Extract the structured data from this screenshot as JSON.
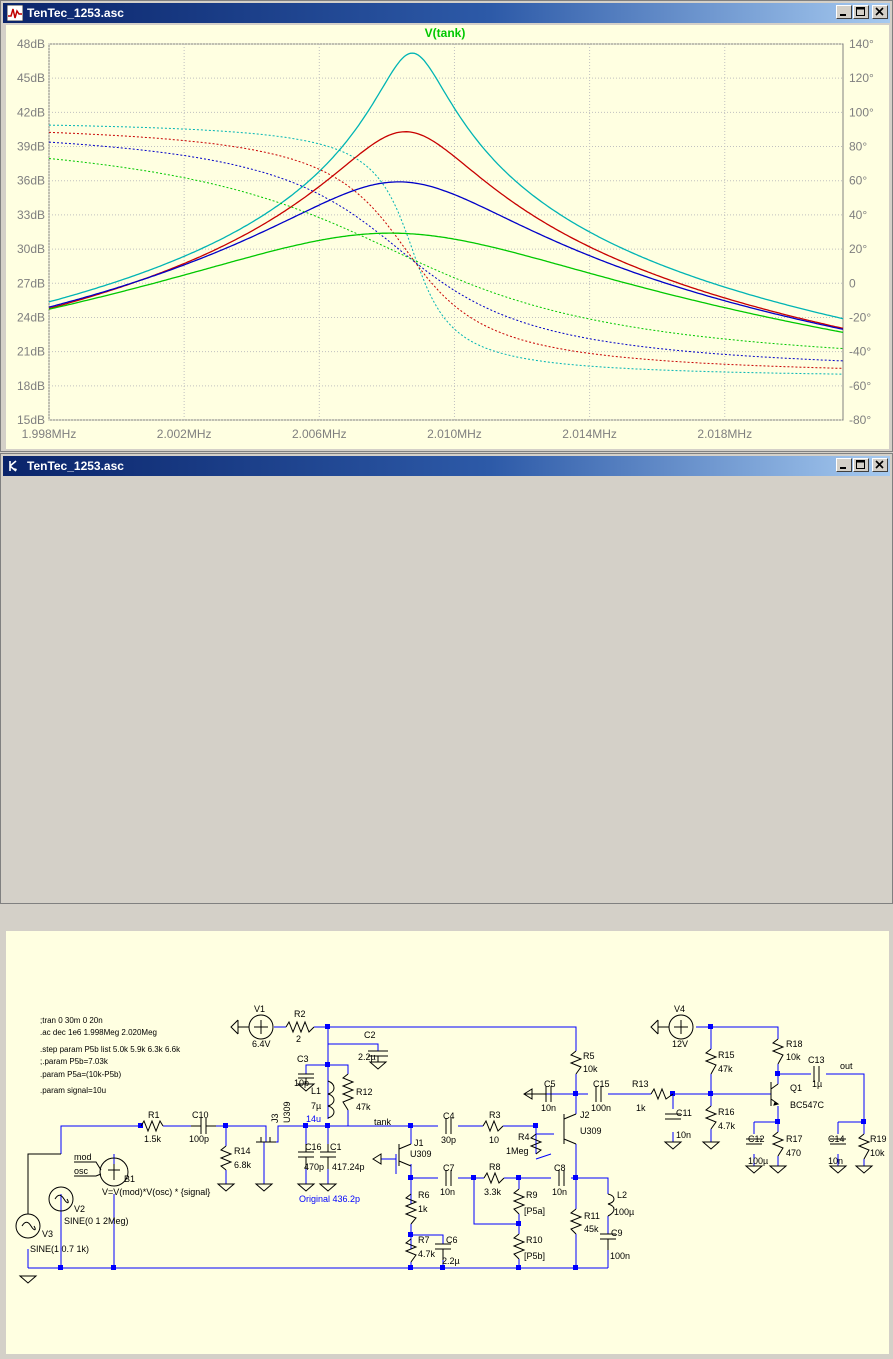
{
  "windows": {
    "plot": {
      "title": "TenTec_1253.asc"
    },
    "schematic": {
      "title": "TenTec_1253.asc"
    }
  },
  "colors": {
    "title_bar": "#0a246a",
    "plot_bg": "#ffffe1",
    "grid": "#c0c0c0",
    "axis_text": "#7f7f7f",
    "wire": "#0000ff",
    "trace_label": "#00c800"
  },
  "chart_data": {
    "type": "line",
    "title": "V(tank)",
    "x_ticks": [
      "1.998MHz",
      "2.002MHz",
      "2.006MHz",
      "2.010MHz",
      "2.014MHz",
      "2.018MHz"
    ],
    "y_left_ticks": [
      "48dB",
      "45dB",
      "42dB",
      "39dB",
      "36dB",
      "33dB",
      "30dB",
      "27dB",
      "24dB",
      "21dB",
      "18dB",
      "15dB"
    ],
    "y_right_ticks": [
      "140°",
      "120°",
      "100°",
      "80°",
      "60°",
      "40°",
      "20°",
      "0",
      "-20°",
      "-40°",
      "-60°",
      "-80°"
    ],
    "xlim_mhz": [
      1.998,
      2.0215
    ],
    "ylim_db": [
      15,
      48
    ],
    "ylim_deg": [
      -80,
      140
    ],
    "grid": true,
    "series": [
      {
        "color": "#00b4b4",
        "f0_mhz": 2.00875,
        "peak_db": 47.2,
        "q": 1150,
        "magnitude": "solid",
        "phase": "dotted"
      },
      {
        "color": "#c80000",
        "f0_mhz": 2.00855,
        "peak_db": 40.3,
        "q": 560,
        "magnitude": "solid",
        "phase": "dotted"
      },
      {
        "color": "#0000c8",
        "f0_mhz": 2.00835,
        "peak_db": 35.9,
        "q": 330,
        "magnitude": "solid",
        "phase": "dotted"
      },
      {
        "color": "#00c800",
        "f0_mhz": 2.0081,
        "peak_db": 31.4,
        "q": 190,
        "magnitude": "solid",
        "phase": "dotted"
      }
    ]
  },
  "schematic": {
    "directives": [
      ";tran 0 30m 0 20n",
      ".ac dec 1e6 1.998Meg 2.020Meg",
      ".step param P5b list 5.0k 5.9k 6.3k 6.6k",
      ";.param P5b=7.03k",
      ".param P5a=(10k-P5b)",
      ".param signal=10u"
    ],
    "labels": {
      "V1": "V1",
      "V1v": "6.4V",
      "R2": "R2",
      "R2v": "2",
      "C2": "C2",
      "C2v": "2.2µ",
      "C3": "C3",
      "C3v": "10p",
      "L1": "L1",
      "L1v": "7µ",
      "L1b": "14u",
      "R12": "R12",
      "R12v": "47k",
      "J3": "J3",
      "J3v": "U309",
      "R1": "R1",
      "R1v": "1.5k",
      "C10": "C10",
      "C10v": "100p",
      "R14": "R14",
      "R14v": "6.8k",
      "tank": "tank",
      "C16": "C16",
      "C16v": "470p",
      "C1": "C1",
      "C1v": "417.24p",
      "orig": "Original 436.2p",
      "C4": "C4",
      "C4v": "30p",
      "R3": "R3",
      "R3v": "10",
      "R4": "R4",
      "R4v": "1Meg",
      "J1": "J1",
      "J1v": "U309",
      "R6": "R6",
      "R6v": "1k",
      "R7": "R7",
      "R7v": "4.7k",
      "C6": "C6",
      "C6v": "2.2µ",
      "C7": "C7",
      "C7v": "10n",
      "R8": "R8",
      "R8v": "3.3k",
      "R9": "R9",
      "R9v": "[P5a]",
      "R10": "R10",
      "R10v": "[P5b]",
      "C8": "C8",
      "C8v": "10n",
      "L2": "L2",
      "L2v": "100µ",
      "R11": "R11",
      "R11v": "45k",
      "C9": "C9",
      "C9v": "100n",
      "R5": "R5",
      "R5v": "10k",
      "C5": "C5",
      "C5v": "10n",
      "J2": "J2",
      "J2v": "U309",
      "C15": "C15",
      "C15v": "100n",
      "R13": "R13",
      "R13v": "1k",
      "C11": "C11",
      "C11v": "10n",
      "V4": "V4",
      "V4v": "12V",
      "R15": "R15",
      "R15v": "47k",
      "R16": "R16",
      "R16v": "4.7k",
      "R18": "R18",
      "R18v": "10k",
      "C13": "C13",
      "C13v": "1µ",
      "out": "out",
      "Q1": "Q1",
      "Q1v": "BC547C",
      "C12": "C12",
      "C12v": "100µ",
      "R17": "R17",
      "R17v": "470",
      "C14": "C14",
      "C14v": "10n",
      "R19": "R19",
      "R19v": "10k",
      "mod": "mod",
      "osc": "osc",
      "B1": "B1",
      "B1v": "V=V(mod)*V(osc) * {signal}",
      "V2": "V2",
      "V2v": "SINE(0 1 2Meg)",
      "V3": "V3",
      "V3v": "SINE(1 0.7 1k)"
    }
  }
}
